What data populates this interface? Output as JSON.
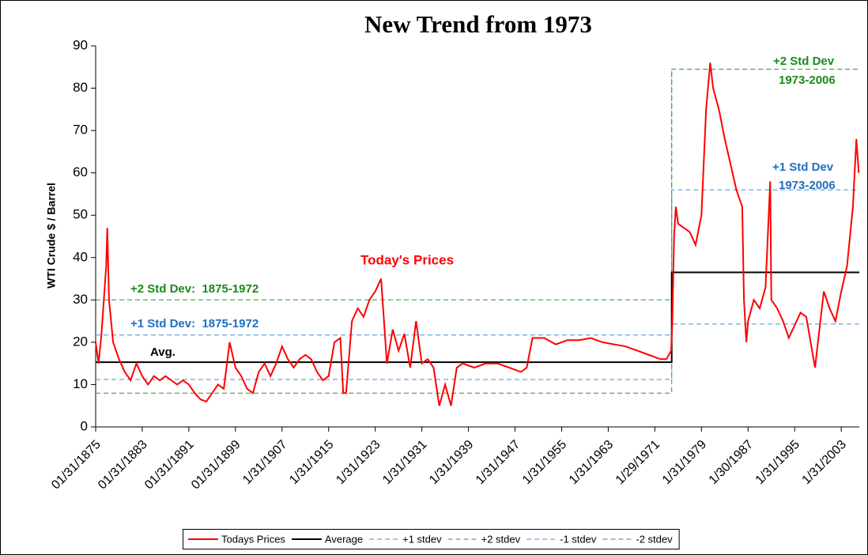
{
  "chart_data": {
    "type": "line",
    "title": "New Trend from 1973",
    "y_label": "WTI Crude $ / Barrel",
    "xlim": [
      1875,
      2006.1
    ],
    "xticks": [
      {
        "value": 1875,
        "label": "01/31/1875"
      },
      {
        "value": 1883,
        "label": "01/31/1883"
      },
      {
        "value": 1891,
        "label": "01/31/1891"
      },
      {
        "value": 1899,
        "label": "01/31/1899"
      },
      {
        "value": 1907,
        "label": "1/31/1907"
      },
      {
        "value": 1915,
        "label": "1/31/1915"
      },
      {
        "value": 1923,
        "label": "1/31/1923"
      },
      {
        "value": 1931,
        "label": "1/31/1931"
      },
      {
        "value": 1939,
        "label": "1/31/1939"
      },
      {
        "value": 1947,
        "label": "1/31/1947"
      },
      {
        "value": 1955,
        "label": "1/31/1955"
      },
      {
        "value": 1963,
        "label": "1/31/1963"
      },
      {
        "value": 1971,
        "label": "1/29/1971"
      },
      {
        "value": 1979,
        "label": "1/31/1979"
      },
      {
        "value": 1987,
        "label": "1/30/1987"
      },
      {
        "value": 1995,
        "label": "1/31/1995"
      },
      {
        "value": 2003,
        "label": "1/31/2003"
      }
    ],
    "ylim": [
      0,
      90
    ],
    "yticks": [
      0,
      10,
      20,
      30,
      40,
      50,
      60,
      70,
      80,
      90
    ],
    "grid": false,
    "legend": "bottom",
    "series": [
      {
        "name": "Todays Prices",
        "color": "#ff0000",
        "style": "solid",
        "width": 2,
        "x": [
          1875,
          1875.5,
          1876,
          1876.8,
          1877,
          1877.3,
          1878,
          1879,
          1880,
          1881,
          1882,
          1883,
          1884,
          1885,
          1886,
          1887,
          1888,
          1889,
          1890,
          1891,
          1892,
          1893,
          1894,
          1895,
          1896,
          1897,
          1898,
          1899,
          1900,
          1901,
          1902,
          1903,
          1904,
          1905,
          1906,
          1907,
          1908,
          1909,
          1910,
          1911,
          1912,
          1913,
          1914,
          1915,
          1916,
          1917,
          1917.5,
          1918,
          1919,
          1920,
          1921,
          1922,
          1923,
          1924,
          1925,
          1926,
          1927,
          1928,
          1929,
          1930,
          1931,
          1932,
          1933,
          1934,
          1935,
          1936,
          1937,
          1938,
          1940,
          1942,
          1944,
          1946,
          1948,
          1949,
          1950,
          1952,
          1954,
          1956,
          1958,
          1960,
          1962,
          1964,
          1966,
          1968,
          1970,
          1972,
          1973,
          1973.8,
          1974,
          1974.3,
          1974.6,
          1975,
          1976,
          1977,
          1978,
          1979,
          1979.8,
          1980.5,
          1981,
          1982,
          1983,
          1984,
          1985,
          1986,
          1986.3,
          1986.7,
          1987,
          1988,
          1989,
          1990,
          1990.8,
          1991,
          1992,
          1993,
          1994,
          1995,
          1996,
          1997,
          1998,
          1998.5,
          1999,
          2000,
          2001,
          2002,
          2003,
          2004,
          2005,
          2005.6,
          2006
        ],
        "values": [
          20,
          15,
          22,
          38,
          47,
          30,
          20,
          16,
          13,
          11,
          15,
          12,
          10,
          12,
          11,
          12,
          11,
          10,
          11,
          10,
          8,
          6.5,
          6,
          8,
          10,
          9,
          20,
          14,
          12,
          9,
          8,
          13,
          15,
          12,
          15,
          19,
          16,
          14,
          16,
          17,
          16,
          13,
          11,
          12,
          20,
          21,
          8,
          8,
          25,
          28,
          26,
          30,
          32,
          35,
          15,
          23,
          18,
          22,
          14,
          25,
          15,
          16,
          14,
          5,
          10,
          5,
          14,
          15,
          14,
          15,
          15,
          14,
          13,
          14,
          21,
          21,
          19.5,
          20.5,
          20.5,
          21,
          20,
          19.5,
          19,
          18,
          17,
          16,
          16,
          18,
          25,
          45,
          52,
          48,
          47,
          46,
          43,
          50,
          75,
          86,
          80,
          75,
          68,
          62,
          56,
          52,
          30,
          20,
          25,
          30,
          28,
          33,
          58,
          30,
          28,
          25,
          21,
          24,
          27,
          26,
          18,
          14,
          20,
          32,
          28,
          25,
          32,
          38,
          52,
          68,
          60
        ]
      },
      {
        "name": "Average",
        "color": "#000000",
        "style": "solid",
        "width": 2,
        "x": [
          1875,
          1973.9,
          1973.9,
          2006.1
        ],
        "values": [
          15.3,
          15.3,
          36.5,
          36.5
        ]
      },
      {
        "name": "+1 stdev",
        "color": "#4a8fd4",
        "style": "dashed",
        "width": 1,
        "x": [
          1875,
          1973.9,
          1973.9,
          2006.1
        ],
        "values": [
          21.7,
          21.7,
          56,
          56
        ]
      },
      {
        "name": "+2 stdev",
        "color": "#2e9a2e",
        "style": "dashed",
        "width": 1,
        "x": [
          1875,
          1973.9,
          1973.9,
          2006.1
        ],
        "values": [
          30,
          30,
          84.5,
          84.5
        ]
      },
      {
        "name": "-1 stdev",
        "color": "#4a8fd4",
        "style": "dashed",
        "width": 1,
        "x": [
          1875,
          1973.9,
          1973.9,
          2006.1
        ],
        "values": [
          11.2,
          11.2,
          24.3,
          24.3
        ]
      },
      {
        "name": "-2 stdev",
        "color": "#2e9a2e",
        "style": "dashed",
        "width": 1,
        "x": [
          1875,
          1973.9,
          1973.9
        ],
        "values": [
          8,
          8,
          84.5
        ]
      }
    ],
    "annotations": [
      {
        "text": "Today's Prices",
        "color": "#ff0000"
      },
      {
        "text": "+2 Std Dev:  1875-1972",
        "color": "#1a8a1a"
      },
      {
        "text": "+1 Std Dev:  1875-1972",
        "color": "#1f6fc0"
      },
      {
        "text": "Avg.",
        "color": "#000000"
      },
      {
        "text": "+2 Std Dev",
        "color": "#1a8a1a"
      },
      {
        "text": "1973-2006",
        "color": "#1a8a1a"
      },
      {
        "text": "+1 Std Dev",
        "color": "#1f6fc0"
      },
      {
        "text": "1973-2006",
        "color": "#1f6fc0"
      }
    ]
  }
}
